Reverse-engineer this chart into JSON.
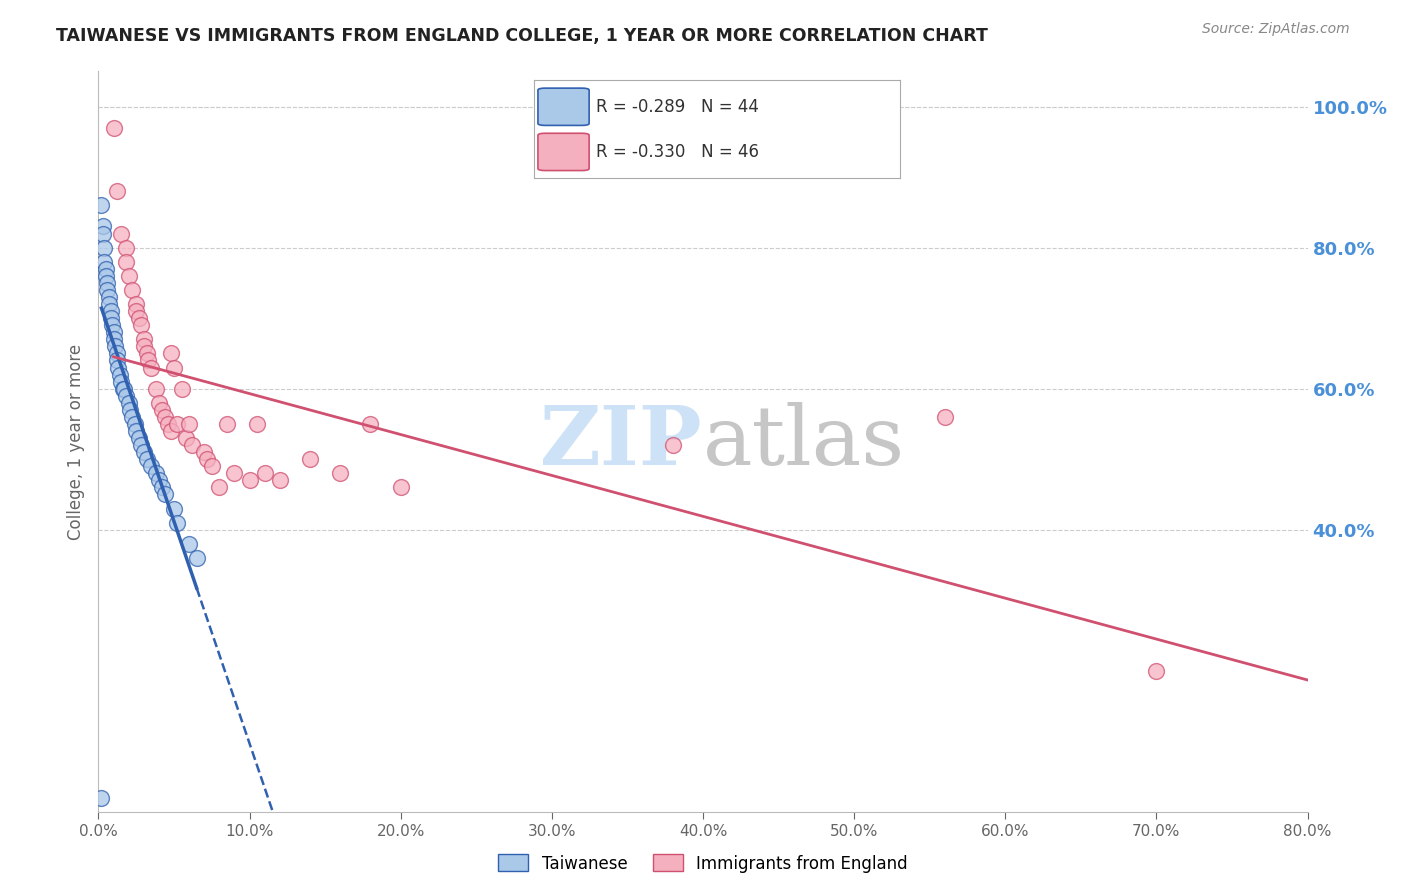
{
  "title": "TAIWANESE VS IMMIGRANTS FROM ENGLAND COLLEGE, 1 YEAR OR MORE CORRELATION CHART",
  "source": "Source: ZipAtlas.com",
  "ylabel": "College, 1 year or more",
  "r_taiwanese": -0.289,
  "n_taiwanese": 44,
  "r_england": -0.33,
  "n_england": 46,
  "taiwanese_color": "#aac8e8",
  "england_color": "#f5b0c0",
  "trend_taiwanese_color": "#3060b0",
  "trend_england_color": "#d05070",
  "xlim": [
    0.0,
    0.8
  ],
  "ylim": [
    0.0,
    1.05
  ],
  "xtick_vals": [
    0.0,
    0.1,
    0.2,
    0.3,
    0.4,
    0.5,
    0.6,
    0.7,
    0.8
  ],
  "yticks_right": [
    0.4,
    0.6,
    0.8,
    1.0
  ],
  "taiwanese_x": [
    0.002,
    0.003,
    0.003,
    0.004,
    0.004,
    0.005,
    0.005,
    0.006,
    0.006,
    0.007,
    0.007,
    0.008,
    0.008,
    0.009,
    0.01,
    0.01,
    0.011,
    0.012,
    0.012,
    0.013,
    0.014,
    0.015,
    0.016,
    0.017,
    0.018,
    0.02,
    0.021,
    0.022,
    0.024,
    0.025,
    0.027,
    0.028,
    0.03,
    0.032,
    0.035,
    0.038,
    0.04,
    0.042,
    0.044,
    0.05,
    0.052,
    0.06,
    0.065,
    0.002
  ],
  "taiwanese_y": [
    0.86,
    0.83,
    0.82,
    0.8,
    0.78,
    0.77,
    0.76,
    0.75,
    0.74,
    0.73,
    0.72,
    0.71,
    0.7,
    0.69,
    0.68,
    0.67,
    0.66,
    0.65,
    0.64,
    0.63,
    0.62,
    0.61,
    0.6,
    0.6,
    0.59,
    0.58,
    0.57,
    0.56,
    0.55,
    0.54,
    0.53,
    0.52,
    0.51,
    0.5,
    0.49,
    0.48,
    0.47,
    0.46,
    0.45,
    0.43,
    0.41,
    0.38,
    0.36,
    0.02
  ],
  "england_x": [
    0.012,
    0.015,
    0.018,
    0.018,
    0.02,
    0.022,
    0.025,
    0.025,
    0.027,
    0.028,
    0.03,
    0.03,
    0.032,
    0.033,
    0.035,
    0.038,
    0.04,
    0.042,
    0.044,
    0.046,
    0.048,
    0.048,
    0.05,
    0.052,
    0.055,
    0.058,
    0.06,
    0.062,
    0.07,
    0.072,
    0.075,
    0.08,
    0.085,
    0.09,
    0.1,
    0.105,
    0.11,
    0.12,
    0.14,
    0.16,
    0.18,
    0.2,
    0.38,
    0.56,
    0.7,
    0.01
  ],
  "england_y": [
    0.88,
    0.82,
    0.8,
    0.78,
    0.76,
    0.74,
    0.72,
    0.71,
    0.7,
    0.69,
    0.67,
    0.66,
    0.65,
    0.64,
    0.63,
    0.6,
    0.58,
    0.57,
    0.56,
    0.55,
    0.54,
    0.65,
    0.63,
    0.55,
    0.6,
    0.53,
    0.55,
    0.52,
    0.51,
    0.5,
    0.49,
    0.46,
    0.55,
    0.48,
    0.47,
    0.55,
    0.48,
    0.47,
    0.5,
    0.48,
    0.55,
    0.46,
    0.52,
    0.56,
    0.2,
    0.97
  ],
  "background_color": "#ffffff",
  "grid_color": "#cccccc",
  "right_axis_color": "#4a90d9",
  "watermark_zip_color": "#c8dff5",
  "watermark_atlas_color": "#c0c0c0"
}
